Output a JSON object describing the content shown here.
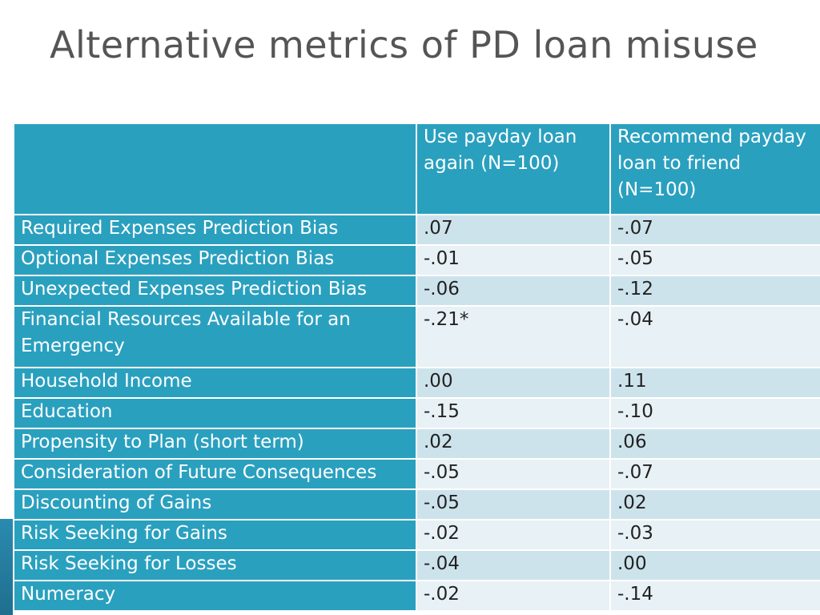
{
  "title": "Alternative metrics of PD loan misuse",
  "table": {
    "columns": [
      "",
      "Use payday loan again (N=100)",
      "Recommend payday loan to friend (N=100)"
    ],
    "rows": [
      {
        "label": "Required Expenses Prediction Bias",
        "use_again": ".07",
        "recommend": "-.07"
      },
      {
        "label": "Optional Expenses Prediction Bias",
        "use_again": "-.01",
        "recommend": "-.05"
      },
      {
        "label": "Unexpected Expenses Prediction Bias",
        "use_again": "-.06",
        "recommend": "-.12"
      },
      {
        "label": "Financial Resources Available for an Emergency",
        "use_again": "-.21*",
        "recommend": "-.04"
      },
      {
        "label": "Household Income",
        "use_again": ".00",
        "recommend": ".11"
      },
      {
        "label": "Education",
        "use_again": "-.15",
        "recommend": "-.10"
      },
      {
        "label": "Propensity to Plan (short term)",
        "use_again": ".02",
        "recommend": ".06"
      },
      {
        "label": "Consideration of Future Consequences",
        "use_again": "-.05",
        "recommend": "-.07"
      },
      {
        "label": "Discounting of Gains",
        "use_again": "-.05",
        "recommend": ".02"
      },
      {
        "label": "Risk Seeking for Gains",
        "use_again": "-.02",
        "recommend": "-.03"
      },
      {
        "label": "Risk Seeking for Losses",
        "use_again": "-.04",
        "recommend": ".00"
      },
      {
        "label": "Numeracy",
        "use_again": "-.02",
        "recommend": "-.14"
      }
    ]
  },
  "colors": {
    "header_bg": "#2aa0bf",
    "row_odd_bg": "#cde3ec",
    "row_even_bg": "#e8f1f5",
    "title_text": "#555555"
  }
}
